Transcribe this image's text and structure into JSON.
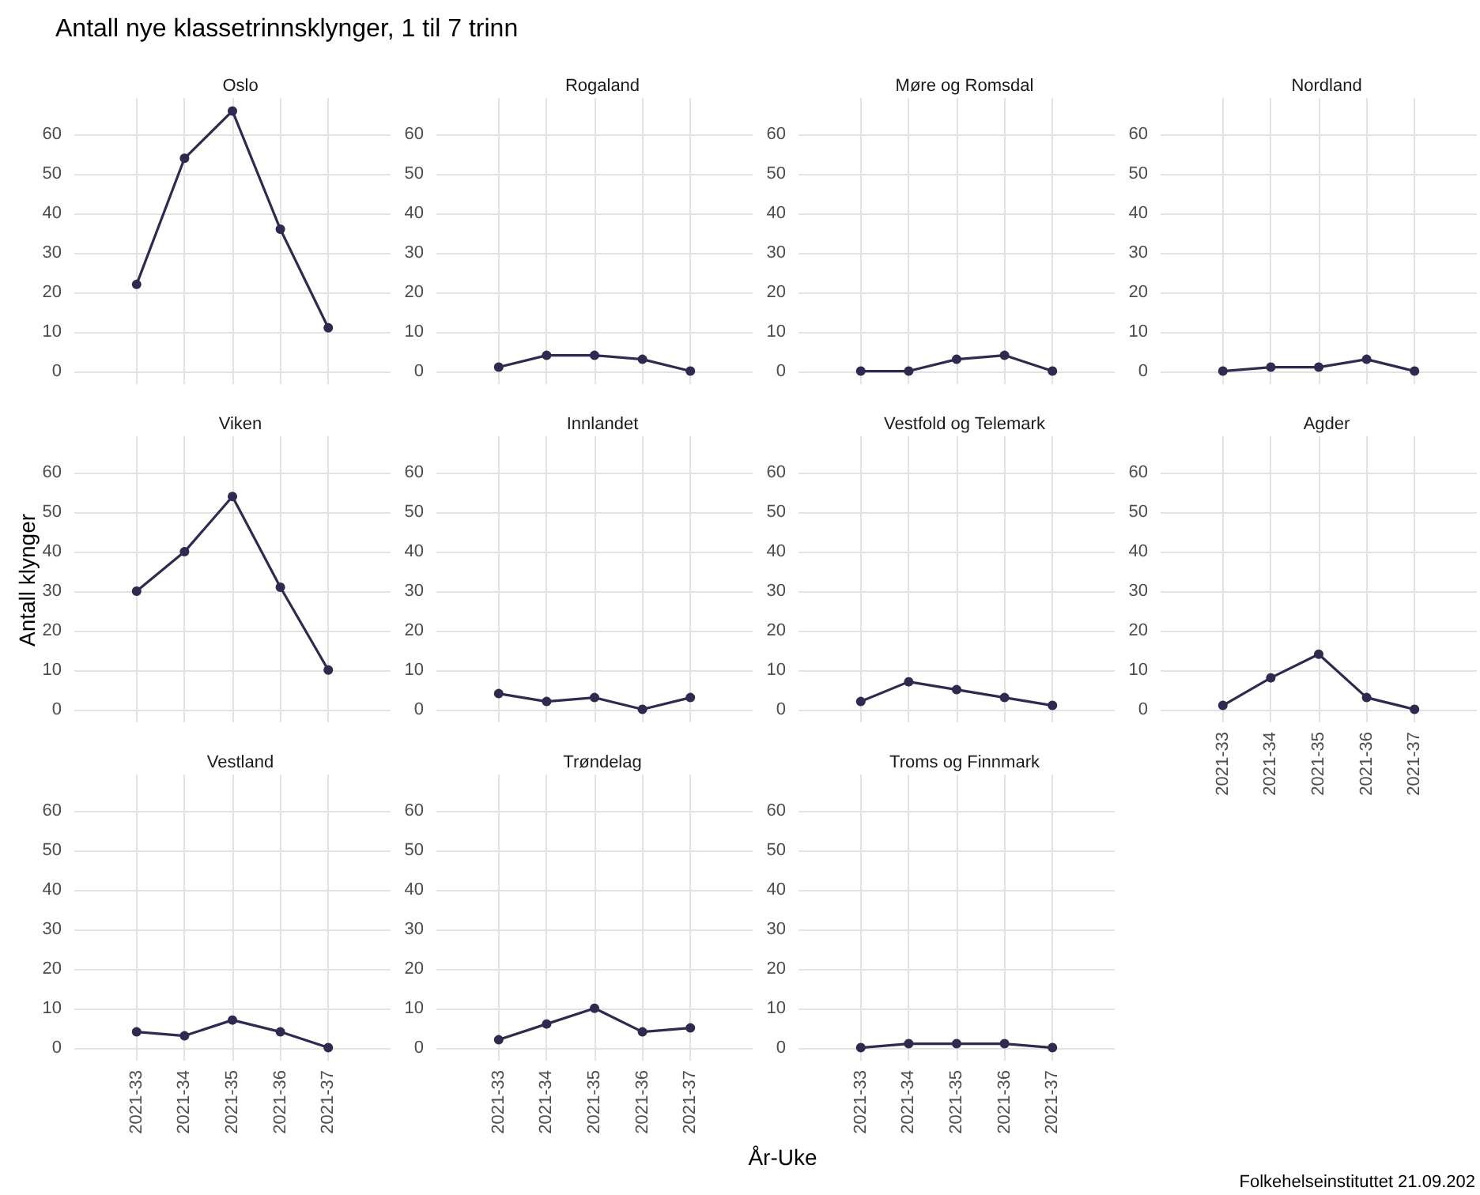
{
  "chart_data": [
    {
      "type": "other",
      "title": "Antall nye klassetrinnsklynger, 1 til 7 trinn",
      "xlabel": "År-Uke",
      "ylabel": "Antall klynger",
      "annotations": [
        "Folkehelseinstituttet 21.09.202"
      ]
    },
    {
      "type": "line",
      "title": "Oslo",
      "categories": [
        "2021-33",
        "2021-34",
        "2021-35",
        "2021-36",
        "2021-37"
      ],
      "values": [
        22,
        54,
        66,
        36,
        11
      ],
      "color": "#2e2a50",
      "ylim": [
        -3.3,
        69.3
      ],
      "yticks": [
        0,
        10,
        20,
        30,
        40,
        50,
        60
      ],
      "grid": true,
      "marker": "circle",
      "tick_labels": "y"
    },
    {
      "type": "line",
      "title": "Rogaland",
      "categories": [
        "2021-33",
        "2021-34",
        "2021-35",
        "2021-36",
        "2021-37"
      ],
      "values": [
        1,
        4,
        4,
        3,
        0
      ],
      "color": "#2e2a50",
      "ylim": [
        -3.3,
        69.3
      ],
      "yticks": [
        0,
        10,
        20,
        30,
        40,
        50,
        60
      ],
      "grid": true,
      "marker": "circle",
      "tick_labels": "y"
    },
    {
      "type": "line",
      "title": "Møre og Romsdal",
      "categories": [
        "2021-33",
        "2021-34",
        "2021-35",
        "2021-36",
        "2021-37"
      ],
      "values": [
        0,
        0,
        3,
        4,
        0
      ],
      "color": "#2e2a50",
      "ylim": [
        -3.3,
        69.3
      ],
      "yticks": [
        0,
        10,
        20,
        30,
        40,
        50,
        60
      ],
      "grid": true,
      "marker": "circle",
      "tick_labels": "y"
    },
    {
      "type": "line",
      "title": "Nordland",
      "categories": [
        "2021-33",
        "2021-34",
        "2021-35",
        "2021-36",
        "2021-37"
      ],
      "values": [
        0,
        1,
        1,
        3,
        0
      ],
      "color": "#2e2a50",
      "ylim": [
        -3.3,
        69.3
      ],
      "yticks": [
        0,
        10,
        20,
        30,
        40,
        50,
        60
      ],
      "grid": true,
      "marker": "circle",
      "tick_labels": "y"
    },
    {
      "type": "line",
      "title": "Viken",
      "categories": [
        "2021-33",
        "2021-34",
        "2021-35",
        "2021-36",
        "2021-37"
      ],
      "values": [
        30,
        40,
        54,
        31,
        10
      ],
      "color": "#2e2a50",
      "ylim": [
        -3.3,
        69.3
      ],
      "yticks": [
        0,
        10,
        20,
        30,
        40,
        50,
        60
      ],
      "grid": true,
      "marker": "circle",
      "tick_labels": "y"
    },
    {
      "type": "line",
      "title": "Innlandet",
      "categories": [
        "2021-33",
        "2021-34",
        "2021-35",
        "2021-36",
        "2021-37"
      ],
      "values": [
        4,
        2,
        3,
        0,
        3
      ],
      "color": "#2e2a50",
      "ylim": [
        -3.3,
        69.3
      ],
      "yticks": [
        0,
        10,
        20,
        30,
        40,
        50,
        60
      ],
      "grid": true,
      "marker": "circle",
      "tick_labels": "y"
    },
    {
      "type": "line",
      "title": "Vestfold og Telemark",
      "categories": [
        "2021-33",
        "2021-34",
        "2021-35",
        "2021-36",
        "2021-37"
      ],
      "values": [
        2,
        7,
        5,
        3,
        1
      ],
      "color": "#2e2a50",
      "ylim": [
        -3.3,
        69.3
      ],
      "yticks": [
        0,
        10,
        20,
        30,
        40,
        50,
        60
      ],
      "grid": true,
      "marker": "circle",
      "tick_labels": "y"
    },
    {
      "type": "line",
      "title": "Agder",
      "categories": [
        "2021-33",
        "2021-34",
        "2021-35",
        "2021-36",
        "2021-37"
      ],
      "values": [
        1,
        8,
        14,
        3,
        0
      ],
      "color": "#2e2a50",
      "ylim": [
        -3.3,
        69.3
      ],
      "yticks": [
        0,
        10,
        20,
        30,
        40,
        50,
        60
      ],
      "grid": true,
      "marker": "circle"
    },
    {
      "type": "line",
      "title": "Vestland",
      "categories": [
        "2021-33",
        "2021-34",
        "2021-35",
        "2021-36",
        "2021-37"
      ],
      "values": [
        4,
        3,
        7,
        4,
        0
      ],
      "color": "#2e2a50",
      "ylim": [
        -3.3,
        69.3
      ],
      "yticks": [
        0,
        10,
        20,
        30,
        40,
        50,
        60
      ],
      "grid": true,
      "marker": "circle"
    },
    {
      "type": "line",
      "title": "Trøndelag",
      "categories": [
        "2021-33",
        "2021-34",
        "2021-35",
        "2021-36",
        "2021-37"
      ],
      "values": [
        2,
        6,
        10,
        4,
        5
      ],
      "color": "#2e2a50",
      "ylim": [
        -3.3,
        69.3
      ],
      "yticks": [
        0,
        10,
        20,
        30,
        40,
        50,
        60
      ],
      "grid": true,
      "marker": "circle"
    },
    {
      "type": "line",
      "title": "Troms og Finnmark",
      "categories": [
        "2021-33",
        "2021-34",
        "2021-35",
        "2021-36",
        "2021-37"
      ],
      "values": [
        0,
        1,
        1,
        1,
        0
      ],
      "color": "#2e2a50",
      "ylim": [
        -3.3,
        69.3
      ],
      "yticks": [
        0,
        10,
        20,
        30,
        40,
        50,
        60
      ],
      "grid": true,
      "marker": "circle"
    }
  ]
}
